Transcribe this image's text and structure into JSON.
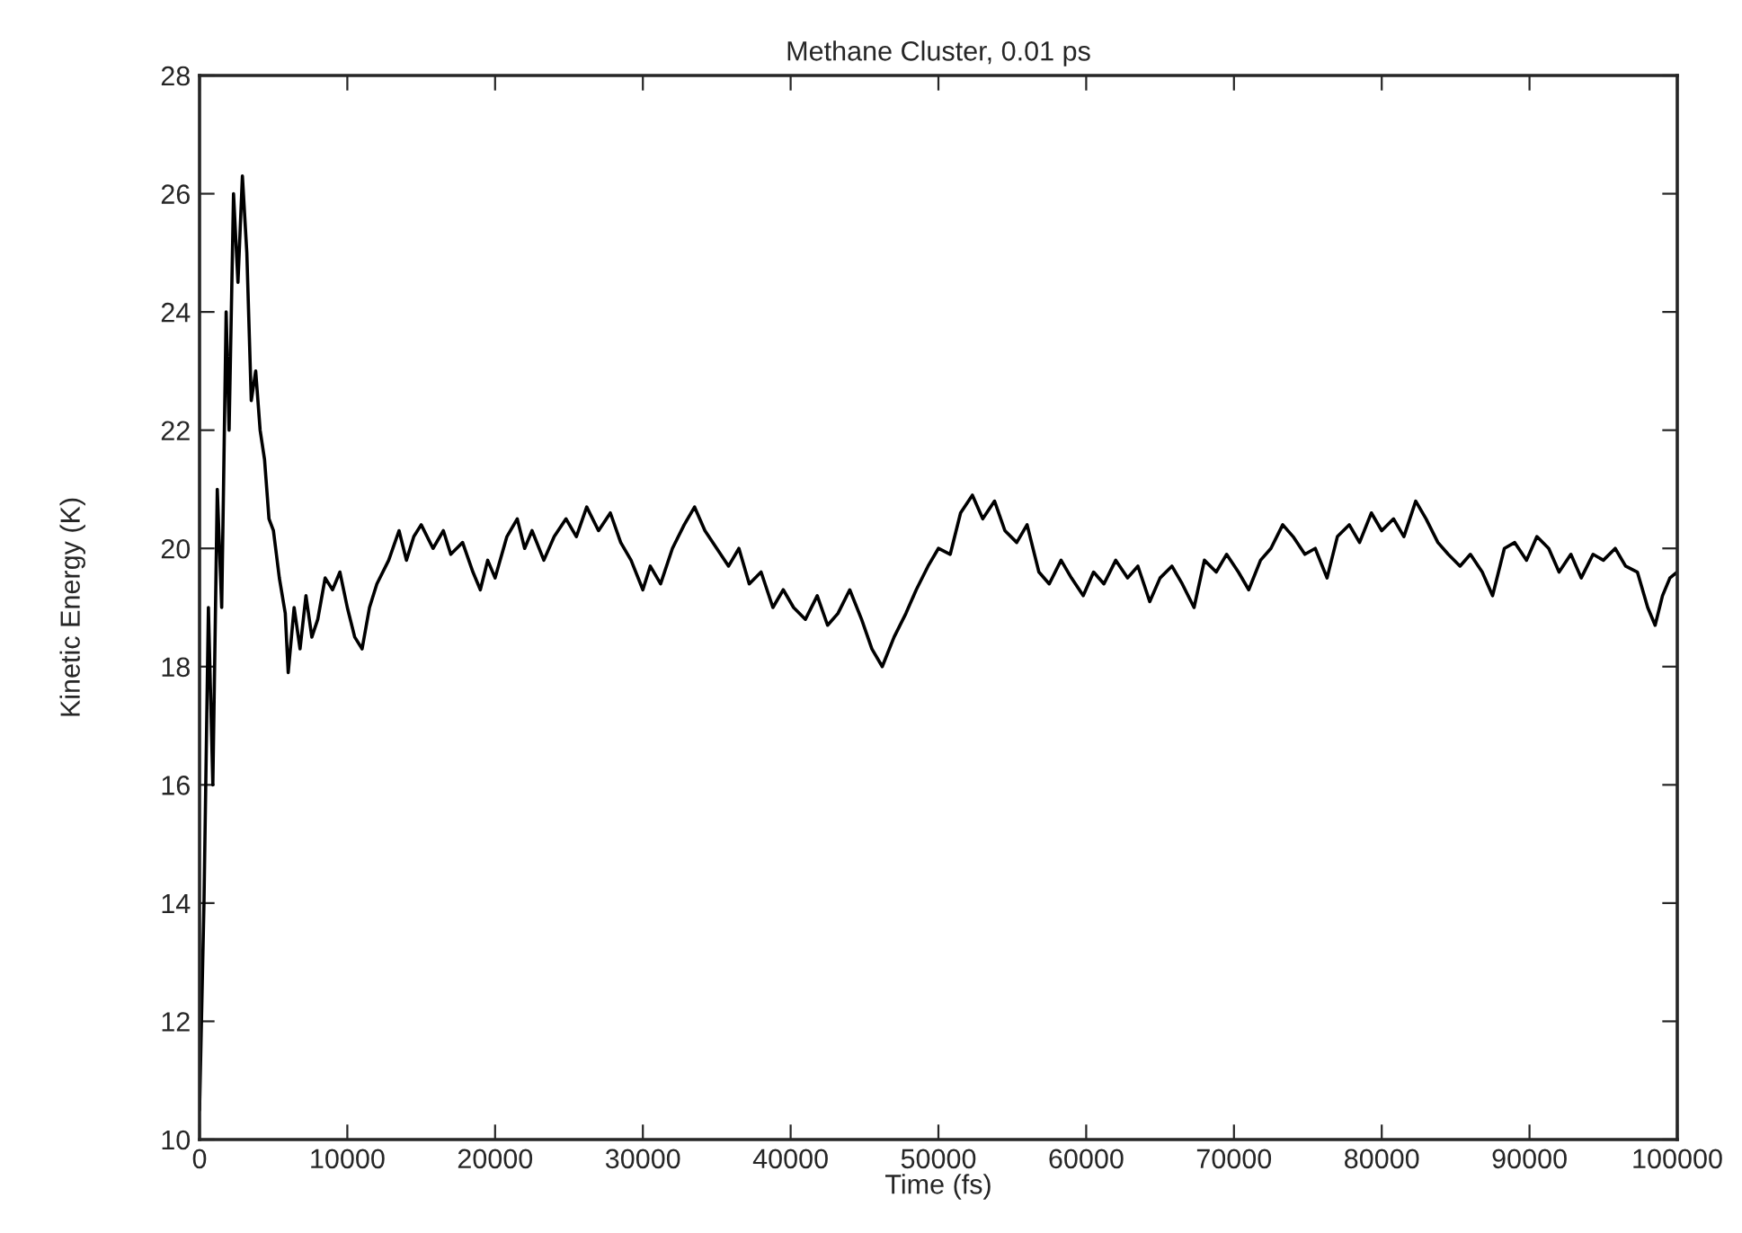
{
  "chart_data": {
    "type": "line",
    "title": "Methane Cluster, 0.01 ps",
    "xlabel": "Time (fs)",
    "ylabel": "Kinetic Energy (K)",
    "x": [
      0,
      300,
      600,
      900,
      1200,
      1500,
      1800,
      2000,
      2300,
      2600,
      2900,
      3200,
      3500,
      3800,
      4100,
      4400,
      4700,
      5000,
      5400,
      5800,
      6000,
      6400,
      6800,
      7200,
      7600,
      8000,
      8500,
      9000,
      9500,
      10000,
      10500,
      11000,
      11500,
      12000,
      12800,
      13500,
      14000,
      14500,
      15000,
      15800,
      16500,
      17000,
      17800,
      18500,
      19000,
      19500,
      20000,
      20800,
      21500,
      22000,
      22500,
      23300,
      24000,
      24800,
      25500,
      26200,
      27000,
      27800,
      28500,
      29200,
      30000,
      30500,
      31200,
      32000,
      32800,
      33500,
      34200,
      35000,
      35800,
      36500,
      37200,
      38000,
      38800,
      39500,
      40200,
      41000,
      41800,
      42500,
      43200,
      44000,
      44800,
      45500,
      46200,
      47000,
      47800,
      48500,
      49300,
      50000,
      50800,
      51500,
      52300,
      53000,
      53800,
      54500,
      55300,
      56000,
      56800,
      57500,
      58300,
      59000,
      59800,
      60500,
      61200,
      62000,
      62800,
      63500,
      64300,
      65000,
      65800,
      66500,
      67300,
      68000,
      68800,
      69500,
      70300,
      71000,
      71800,
      72500,
      73300,
      74000,
      74800,
      75500,
      76300,
      77000,
      77800,
      78500,
      79300,
      80000,
      80800,
      81500,
      82300,
      83000,
      83800,
      84500,
      85300,
      86000,
      86800,
      87500,
      88300,
      89000,
      89800,
      90500,
      91300,
      92000,
      92800,
      93500,
      94300,
      95000,
      95800,
      96500,
      97300,
      98000,
      98500,
      99000,
      99500,
      100000
    ],
    "series": [
      {
        "color": "#000000",
        "values": [
          10.5,
          14,
          19,
          16,
          21,
          19,
          24,
          22,
          26,
          24.5,
          26.3,
          25,
          22.5,
          23,
          22,
          21.5,
          20.5,
          20.3,
          19.5,
          18.9,
          17.9,
          19,
          18.3,
          19.2,
          18.5,
          18.8,
          19.5,
          19.3,
          19.6,
          19.0,
          18.5,
          18.3,
          19,
          19.4,
          19.8,
          20.3,
          19.8,
          20.2,
          20.4,
          20.0,
          20.3,
          19.9,
          20.1,
          19.6,
          19.3,
          19.8,
          19.5,
          20.2,
          20.5,
          20.0,
          20.3,
          19.8,
          20.2,
          20.5,
          20.2,
          20.7,
          20.3,
          20.6,
          20.1,
          19.8,
          19.3,
          19.7,
          19.4,
          20.0,
          20.4,
          20.7,
          20.3,
          20.0,
          19.7,
          20.0,
          19.4,
          19.6,
          19.0,
          19.3,
          19.0,
          18.8,
          19.2,
          18.7,
          18.9,
          19.3,
          18.8,
          18.3,
          18.0,
          18.5,
          18.9,
          19.3,
          19.7,
          20.0,
          19.9,
          20.6,
          20.9,
          20.5,
          20.8,
          20.3,
          20.1,
          20.4,
          19.6,
          19.4,
          19.8,
          19.5,
          19.2,
          19.6,
          19.4,
          19.8,
          19.5,
          19.7,
          19.1,
          19.5,
          19.7,
          19.4,
          19.0,
          19.8,
          19.6,
          19.9,
          19.6,
          19.3,
          19.8,
          20.0,
          20.4,
          20.2,
          19.9,
          20.0,
          19.5,
          20.2,
          20.4,
          20.1,
          20.6,
          20.3,
          20.5,
          20.2,
          20.8,
          20.5,
          20.1,
          19.9,
          19.7,
          19.9,
          19.6,
          19.2,
          20.0,
          20.1,
          19.8,
          20.2,
          20.0,
          19.6,
          19.9,
          19.5,
          19.9,
          19.8,
          20.0,
          19.7,
          19.6,
          19.0,
          18.7,
          19.2,
          19.5,
          19.6
        ]
      }
    ],
    "xlim": [
      0,
      100000
    ],
    "ylim": [
      10,
      28
    ],
    "xticks": [
      0,
      10000,
      20000,
      30000,
      40000,
      50000,
      60000,
      70000,
      80000,
      90000,
      100000
    ],
    "yticks": [
      10,
      12,
      14,
      16,
      18,
      20,
      22,
      24,
      26,
      28
    ],
    "marker": "none",
    "line_style": "solid"
  }
}
